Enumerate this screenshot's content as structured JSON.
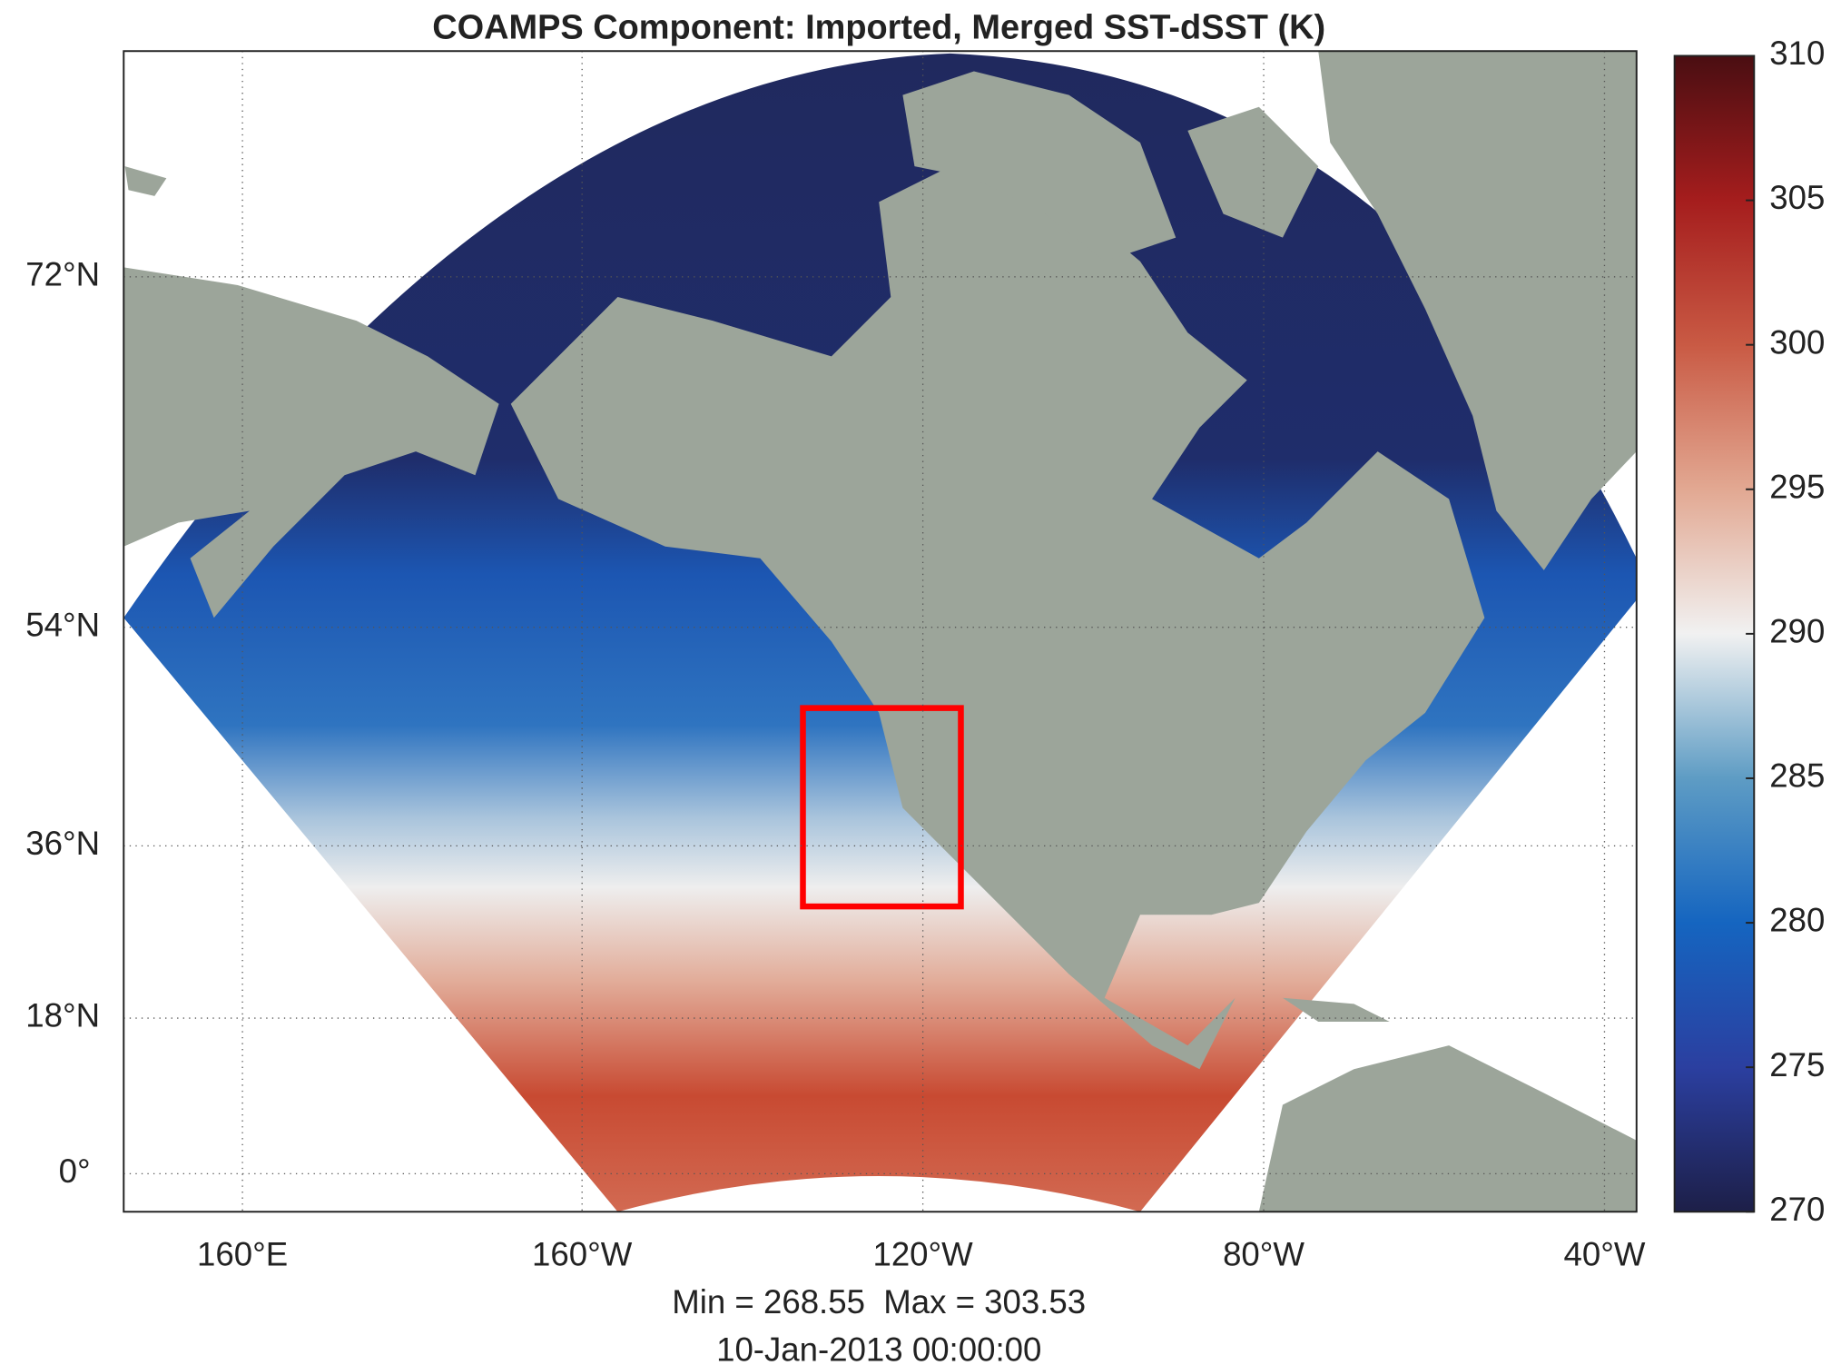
{
  "title": "COAMPS Component: Imported, Merged SST-dSST (K)",
  "map": {
    "lat_labels": [
      "72°N",
      "54°N",
      "36°N",
      "18°N",
      "0°"
    ],
    "lon_labels": [
      "160°E",
      "160°W",
      "120°W",
      "80°W",
      "40°W"
    ]
  },
  "colorbar": {
    "lim": [
      270,
      310
    ],
    "ticks": [
      270,
      275,
      280,
      285,
      290,
      295,
      300,
      305,
      310
    ]
  },
  "stats": "Min = 268.55  Max = 303.53",
  "date": "10-Jan-2013 00:00:00"
}
